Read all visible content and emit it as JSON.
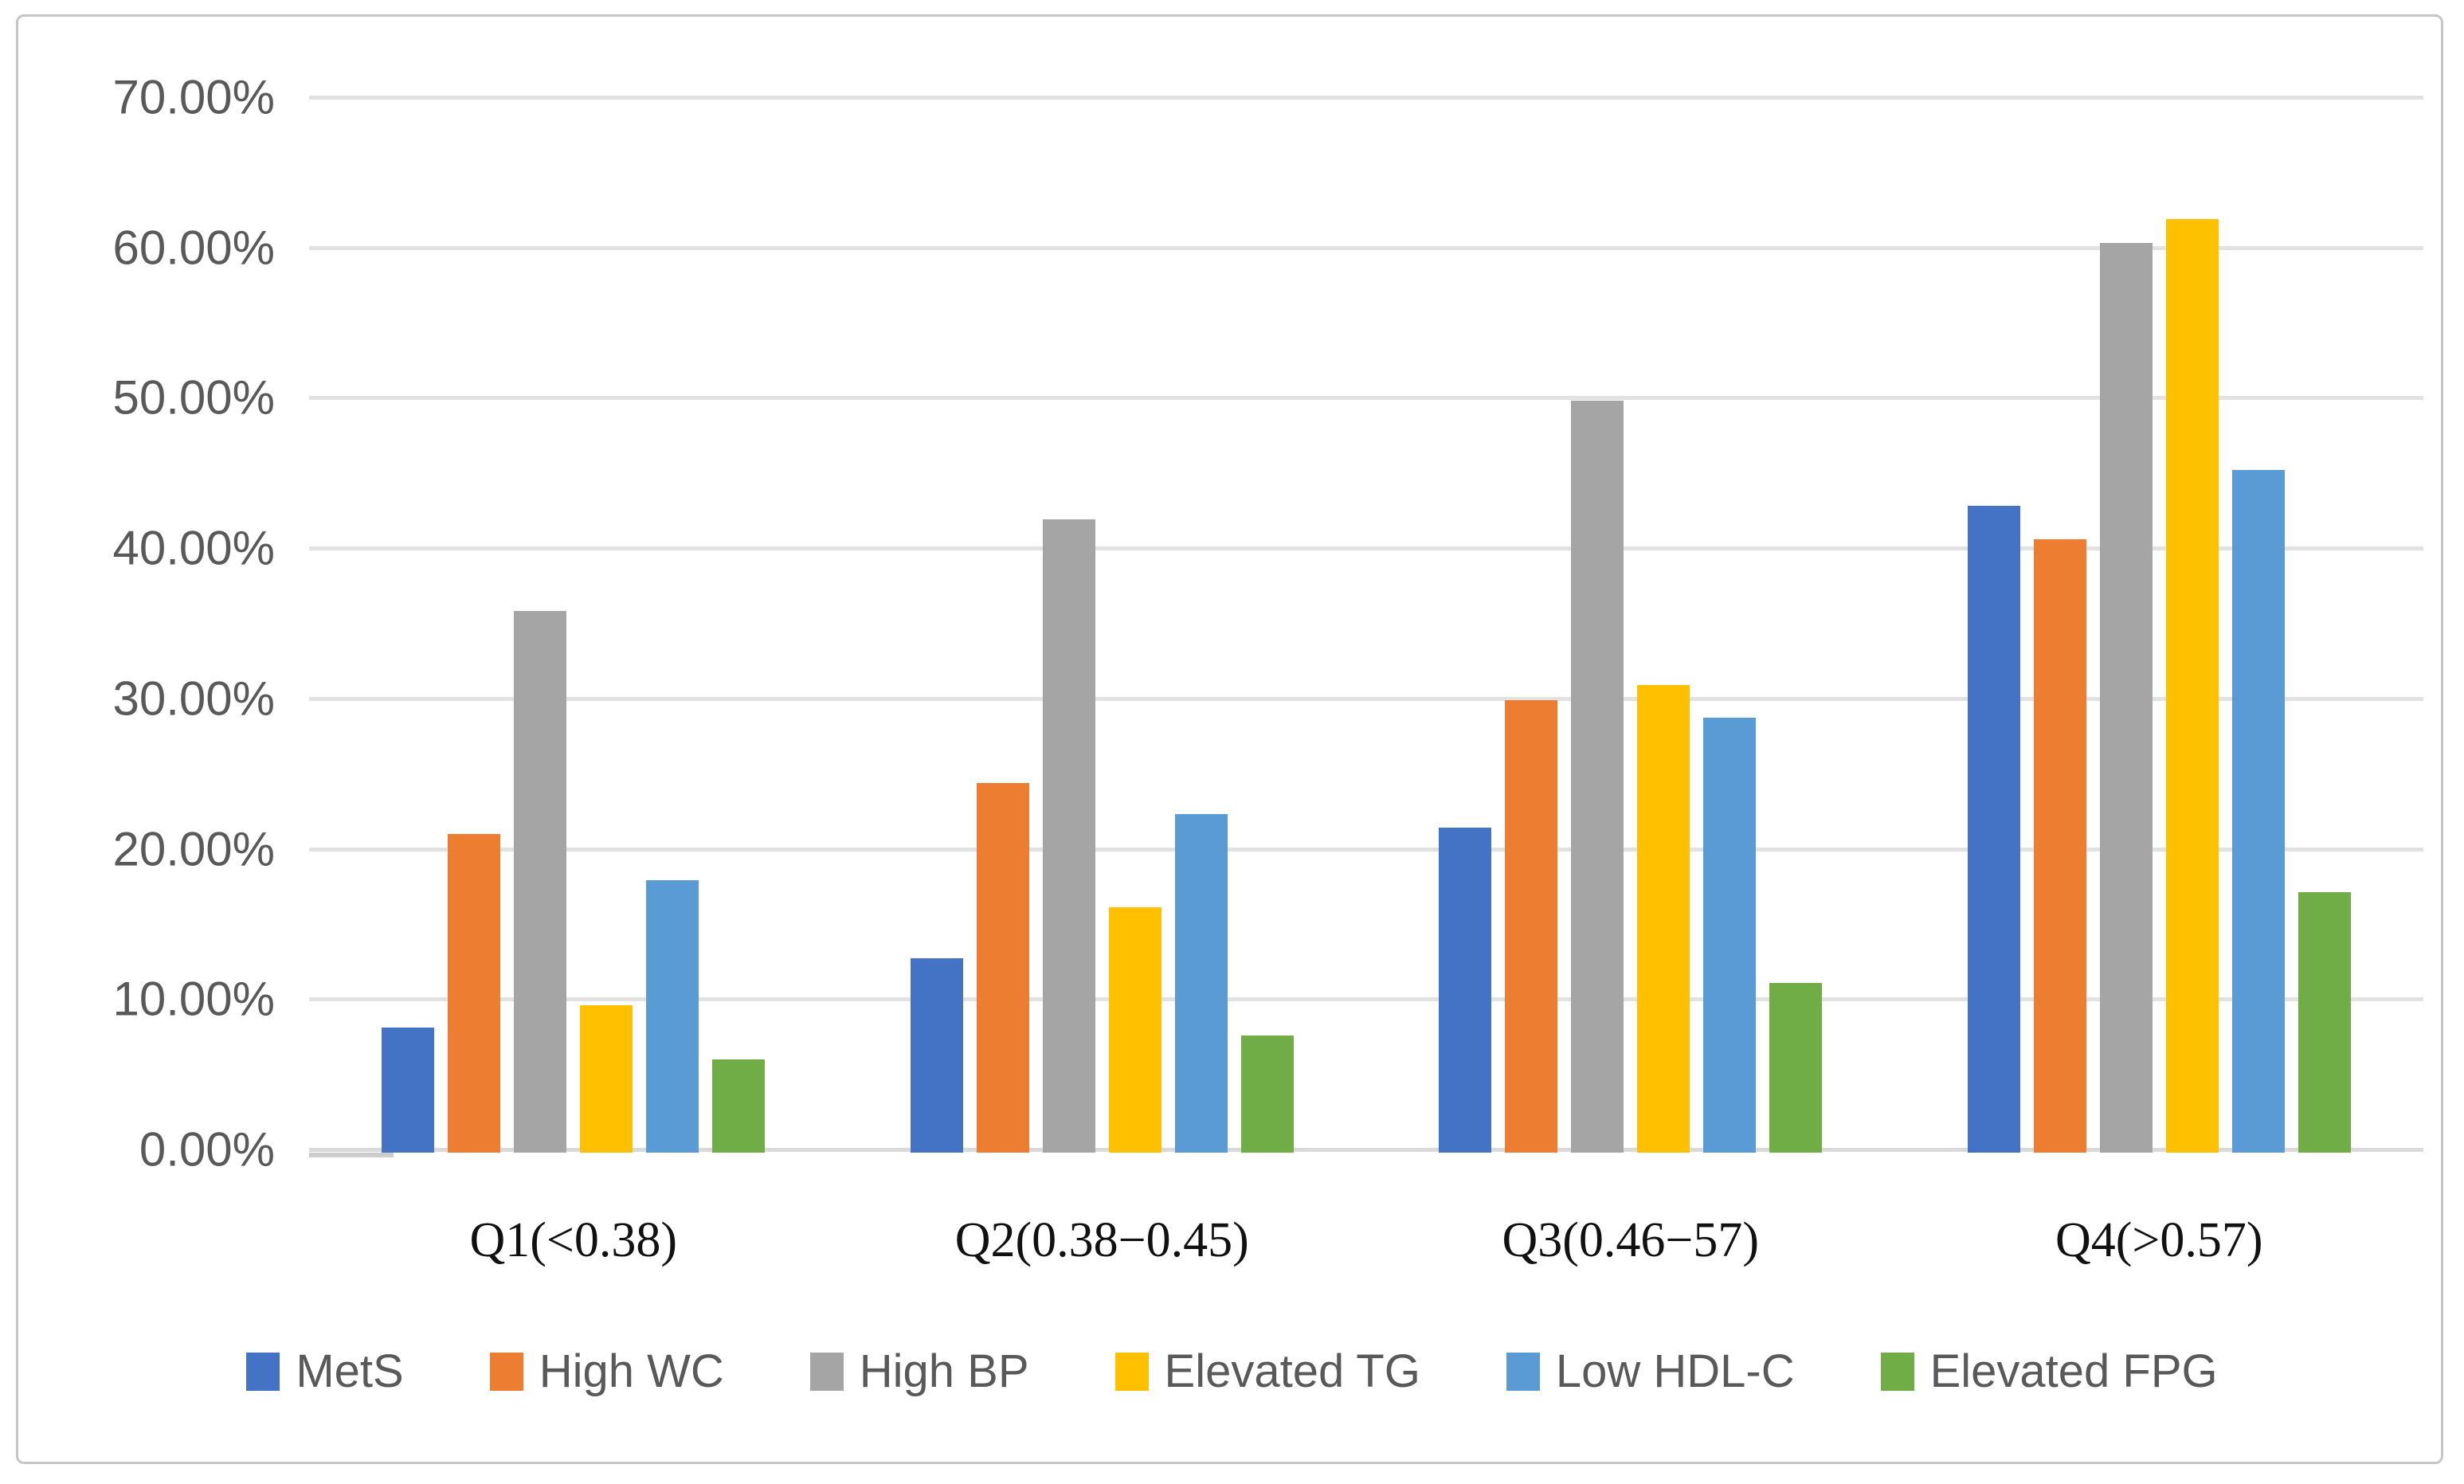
{
  "figure": {
    "background_color": "#ffffff",
    "border_color": "#c6c6c6"
  },
  "chart_data": {
    "type": "bar",
    "title": "",
    "xlabel": "",
    "ylabel": "",
    "categories": [
      "Q1(<0.38)",
      "Q2(0.38−0.45)",
      "Q3(0.46−57)",
      "Q4(>0.57)"
    ],
    "series": [
      {
        "name": "MetS",
        "color": "#4472C4",
        "values": [
          8.1,
          12.7,
          21.4,
          42.8
        ]
      },
      {
        "name": "High WC",
        "color": "#ED7D31",
        "values": [
          21.0,
          24.4,
          29.9,
          40.6
        ]
      },
      {
        "name": "High BP",
        "color": "#A5A5A5",
        "values": [
          35.8,
          41.9,
          49.8,
          60.3
        ]
      },
      {
        "name": "Elevated TG",
        "color": "#FFC000",
        "values": [
          9.6,
          16.1,
          30.9,
          61.9
        ]
      },
      {
        "name": "Low HDL-C",
        "color": "#5B9BD5",
        "values": [
          17.9,
          22.3,
          28.7,
          45.2
        ]
      },
      {
        "name": "Elevated FPG",
        "color": "#70AD47",
        "values": [
          6.0,
          7.6,
          11.1,
          17.1
        ]
      }
    ],
    "ylim": [
      0,
      70
    ],
    "y_ticks": [
      {
        "value": 70,
        "label": "70.00%"
      },
      {
        "value": 60,
        "label": "60.00%"
      },
      {
        "value": 50,
        "label": "50.00%"
      },
      {
        "value": 40,
        "label": "40.00%"
      },
      {
        "value": 30,
        "label": "30.00%"
      },
      {
        "value": 20,
        "label": "20.00%"
      },
      {
        "value": 10,
        "label": "10.00%"
      },
      {
        "value": 0,
        "label": "0.00%"
      }
    ],
    "grid": "horizontal",
    "gridline_color": "#e2e2e2",
    "axis_line_color": "#d9d9d9",
    "tick_label_color": "#595959",
    "category_label_color": "#111111",
    "legend_position": "bottom",
    "legend_label_color": "#595959"
  }
}
